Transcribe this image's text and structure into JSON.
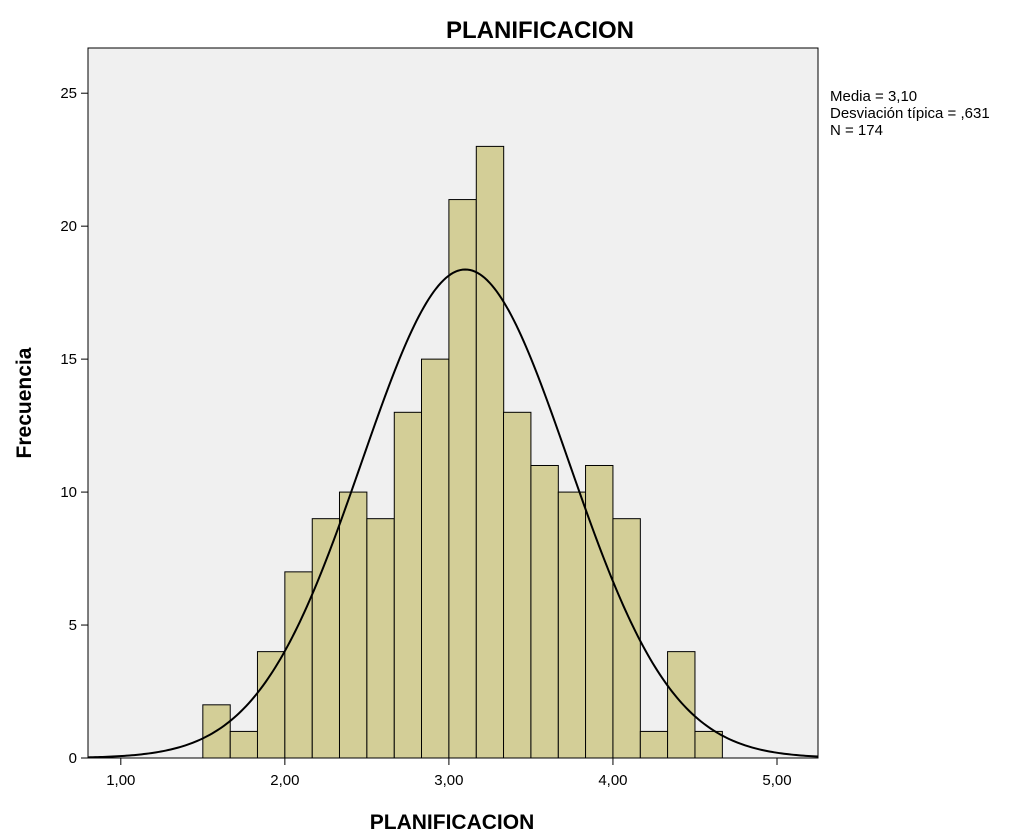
{
  "chart_data": {
    "type": "bar",
    "subtype": "histogram",
    "title": "PLANIFICACION",
    "xlabel": "PLANIFICACION",
    "ylabel": "Frecuencia",
    "xlim": [
      0.8,
      5.25
    ],
    "ylim": [
      0,
      26.7
    ],
    "x_ticks": [
      1,
      2,
      3,
      4,
      5
    ],
    "x_tick_labels": [
      "1,00",
      "2,00",
      "3,00",
      "4,00",
      "5,00"
    ],
    "y_ticks": [
      0,
      5,
      10,
      15,
      20,
      25
    ],
    "y_tick_labels": [
      "0",
      "5",
      "10",
      "15",
      "20",
      "25"
    ],
    "bin_width": 0.167,
    "bins": [
      {
        "start": 1.5,
        "value": 2
      },
      {
        "start": 1.667,
        "value": 1
      },
      {
        "start": 1.833,
        "value": 4
      },
      {
        "start": 2.0,
        "value": 7
      },
      {
        "start": 2.167,
        "value": 9
      },
      {
        "start": 2.333,
        "value": 10
      },
      {
        "start": 2.5,
        "value": 9
      },
      {
        "start": 2.667,
        "value": 13
      },
      {
        "start": 2.833,
        "value": 15
      },
      {
        "start": 3.0,
        "value": 21
      },
      {
        "start": 3.167,
        "value": 23
      },
      {
        "start": 3.333,
        "value": 13
      },
      {
        "start": 3.5,
        "value": 11
      },
      {
        "start": 3.667,
        "value": 10
      },
      {
        "start": 3.833,
        "value": 11
      },
      {
        "start": 4.0,
        "value": 9
      },
      {
        "start": 4.167,
        "value": 1
      },
      {
        "start": 4.333,
        "value": 4
      },
      {
        "start": 4.5,
        "value": 1
      }
    ],
    "normal_curve": {
      "mean": 3.1,
      "std": 0.631,
      "n": 174
    },
    "stats_lines": [
      "Media = 3,10",
      "Desviación típica = ,631",
      "N = 174"
    ],
    "legend_position": "top-right outside plot",
    "grid": false,
    "colors": {
      "plot_background": "#f0f0f0",
      "bar_fill": "#d3ce97",
      "bar_stroke": "#000000",
      "curve": "#000000"
    }
  }
}
